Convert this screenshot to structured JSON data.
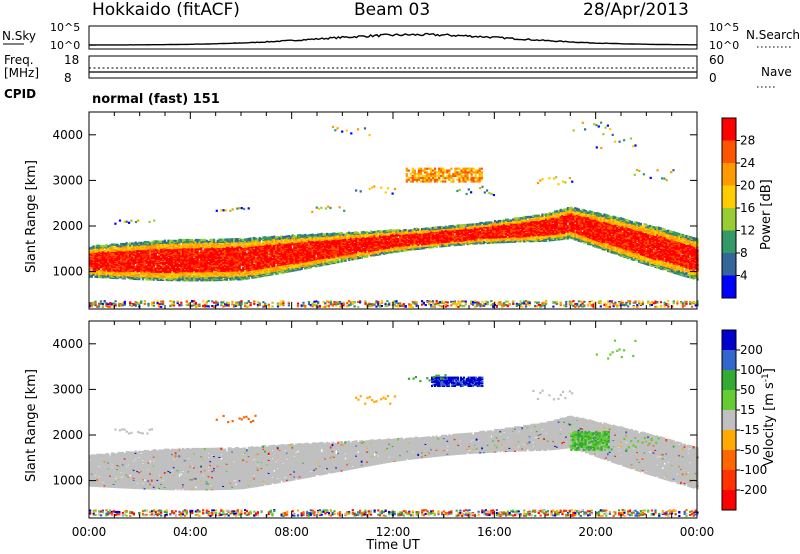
{
  "header": {
    "radar": "Hokkaido (fitACF)",
    "beam": "Beam 03",
    "date": "28/Apr/2013"
  },
  "params": {
    "nsky_label": "N.Sky",
    "nsearch_label": "N.Search",
    "nsky_ticks": [
      "10^5",
      "10^0"
    ],
    "nsearch_ticks": [
      "10^5",
      "10^0"
    ],
    "freq_label": "Freq.",
    "freq_unit": "[MHz]",
    "freq_ticks": [
      "18",
      "8"
    ],
    "nave_label": "Nave",
    "nave_ticks": [
      "60",
      "0"
    ],
    "cpid_label": "CPID",
    "cpid_value": "normal (fast) 151"
  },
  "chart_data": [
    {
      "type": "heatmap",
      "title": "Power",
      "ylabel": "Slant Range [km]",
      "xlabel": "Time UT",
      "xticks": [
        "00:00",
        "04:00",
        "08:00",
        "12:00",
        "16:00",
        "20:00",
        "00:00"
      ],
      "yticks": [
        "1000",
        "2000",
        "3000",
        "4000"
      ],
      "ylim": [
        180,
        4500
      ],
      "colorbar_label": "Power [dB]",
      "colorbar_ticks": [
        "28",
        "24",
        "20",
        "16",
        "12",
        "8",
        "4"
      ],
      "colorbar_colors": [
        "#ff0000",
        "#ff5500",
        "#ff9900",
        "#ffcc00",
        "#99cc33",
        "#339966",
        "#336699",
        "#0000ff"
      ],
      "features": [
        {
          "name": "main_band",
          "time_h": [
            0,
            6,
            12,
            18,
            19,
            24
          ],
          "range_km": [
            1250,
            1300,
            1700,
            2000,
            2100,
            1300
          ],
          "power_db": 28
        },
        {
          "name": "upper_echo",
          "time_h": [
            12.5,
            15.5
          ],
          "range_km": [
            3000,
            3300
          ],
          "power_db": 22
        },
        {
          "name": "ground_scatter_floor",
          "time_h": [
            0,
            24
          ],
          "range_km": [
            200,
            400
          ],
          "power_db": 10
        }
      ]
    },
    {
      "type": "heatmap",
      "title": "Velocity",
      "ylabel": "Slant Range [km]",
      "xlabel": "Time UT",
      "xticks": [
        "00:00",
        "04:00",
        "08:00",
        "12:00",
        "16:00",
        "20:00",
        "00:00"
      ],
      "yticks": [
        "1000",
        "2000",
        "3000",
        "4000"
      ],
      "ylim": [
        180,
        4500
      ],
      "colorbar_label": "Velocity [m s^-1]",
      "colorbar_ticks": [
        "200",
        "100",
        "50",
        "15",
        "-15",
        "-50",
        "-100",
        "-200"
      ],
      "colorbar_colors": [
        "#0000cc",
        "#3366cc",
        "#33aa33",
        "#66cc33",
        "#c0c0c0",
        "#ffaa00",
        "#ff6600",
        "#ff3300",
        "#ff0000"
      ],
      "features": [
        {
          "name": "ground_scatter",
          "time_h": [
            0,
            24
          ],
          "range_km": [
            1300,
            1800
          ],
          "velocity": 0
        },
        {
          "name": "blue_patch",
          "time_h": [
            13.5,
            15.5
          ],
          "range_km": [
            3100,
            3300
          ],
          "velocity": 150
        },
        {
          "name": "green_patch",
          "time_h": [
            19,
            20.5
          ],
          "range_km": [
            1700,
            2100
          ],
          "velocity": 40
        }
      ]
    }
  ]
}
